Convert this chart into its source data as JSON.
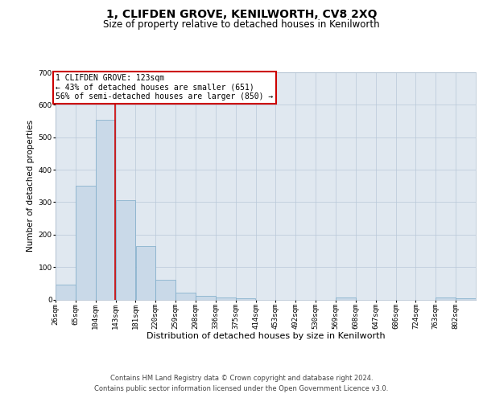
{
  "title": "1, CLIFDEN GROVE, KENILWORTH, CV8 2XQ",
  "subtitle": "Size of property relative to detached houses in Kenilworth",
  "xlabel": "Distribution of detached houses by size in Kenilworth",
  "ylabel": "Number of detached properties",
  "footer_line1": "Contains HM Land Registry data © Crown copyright and database right 2024.",
  "footer_line2": "Contains public sector information licensed under the Open Government Licence v3.0.",
  "annotation_line1": "1 CLIFDEN GROVE: 123sqm",
  "annotation_line2": "← 43% of detached houses are smaller (651)",
  "annotation_line3": "56% of semi-detached houses are larger (850) →",
  "categories": [
    "26sqm",
    "65sqm",
    "104sqm",
    "143sqm",
    "181sqm",
    "220sqm",
    "259sqm",
    "298sqm",
    "336sqm",
    "375sqm",
    "414sqm",
    "453sqm",
    "492sqm",
    "530sqm",
    "569sqm",
    "608sqm",
    "647sqm",
    "686sqm",
    "724sqm",
    "763sqm",
    "802sqm"
  ],
  "bin_edges": [
    6.5,
    45.5,
    84.5,
    123.5,
    162.5,
    201.5,
    240.5,
    279.5,
    318.5,
    357.5,
    396.5,
    435.5,
    474.5,
    513.5,
    552.5,
    591.5,
    630.5,
    669.5,
    708.5,
    747.5,
    786.5,
    825.5
  ],
  "values": [
    45,
    350,
    555,
    305,
    165,
    60,
    22,
    12,
    7,
    4,
    0,
    0,
    0,
    0,
    7,
    0,
    0,
    0,
    0,
    7,
    4
  ],
  "bar_color": "#c9d9e8",
  "bar_edge_color": "#7aaac8",
  "vline_color": "#cc0000",
  "vline_x": 123,
  "annotation_box_edgecolor": "#cc0000",
  "grid_color": "#b8c8d8",
  "background_color": "#e0e8f0",
  "ylim": [
    0,
    700
  ],
  "yticks": [
    0,
    100,
    200,
    300,
    400,
    500,
    600,
    700
  ],
  "title_fontsize": 10,
  "subtitle_fontsize": 8.5,
  "xlabel_fontsize": 8,
  "ylabel_fontsize": 7.5,
  "tick_fontsize": 6.5,
  "annotation_fontsize": 7,
  "footer_fontsize": 6
}
